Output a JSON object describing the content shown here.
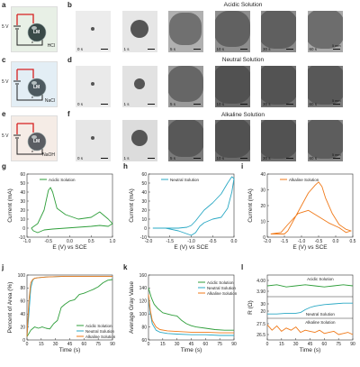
{
  "panels": {
    "a": "a",
    "b": "b",
    "c": "c",
    "d": "d",
    "e": "e",
    "f": "f",
    "g": "g",
    "h": "h",
    "i": "i",
    "j": "j",
    "k": "k",
    "l": "l"
  },
  "circuits": [
    {
      "voltage": "5 V",
      "drop": "LM",
      "solution": "HCl",
      "bg": "#e8f0e6",
      "drop_color": "#3a4a48",
      "electron": "e⁻"
    },
    {
      "voltage": "5 V",
      "drop": "LM",
      "solution": "NaCl",
      "bg": "#e3eef5",
      "drop_color": "#4d5a60",
      "electron": "e⁻"
    },
    {
      "voltage": "5 V",
      "drop": "LM",
      "solution": "NaOH",
      "bg": "#f5ece6",
      "drop_color": "#5a5d62",
      "electron": "e⁻"
    }
  ],
  "image_rows": [
    {
      "title": "Acidic Solution",
      "title_color": "#4a55a0",
      "times": [
        "0 s",
        "1 s",
        "5 s",
        "10 s",
        "30 s",
        "60 s"
      ],
      "scalebar": "5 mm"
    },
    {
      "title": "Neutral Solution",
      "title_color": "#4a55a0",
      "times": [
        "0 s",
        "1 s",
        "5 s",
        "10 s",
        "30 s",
        "60 s"
      ],
      "scalebar": "5 mm"
    },
    {
      "title": "Alkaline Solution",
      "title_color": "#4a55a0",
      "times": [
        "0 s",
        "1 s",
        "5 s",
        "10 s",
        "30 s",
        "60 s"
      ],
      "scalebar": "5 mm"
    }
  ],
  "colors": {
    "acidic": "#2e9e3a",
    "neutral": "#2aa8c4",
    "alkaline": "#f07a1a",
    "red_wire": "#d62020"
  },
  "chart_data": [
    {
      "id": "g",
      "type": "line",
      "xlabel": "E (V) vs SCE",
      "ylabel": "Current (mA)",
      "xlim": [
        -1.0,
        1.0
      ],
      "ylim": [
        -10,
        60
      ],
      "xticks": [
        "-1.0",
        "-0.5",
        "0.0",
        "0.5",
        "1.0"
      ],
      "yticks": [
        "-10",
        "0",
        "10",
        "20",
        "30",
        "40",
        "50",
        "60"
      ],
      "series": [
        {
          "name": "Acidic Solution",
          "color": "#2e9e3a",
          "x": [
            -0.9,
            -0.75,
            -0.6,
            -0.5,
            -0.45,
            -0.4,
            -0.3,
            -0.1,
            0.2,
            0.5,
            0.7,
            0.9,
            1.0,
            0.9,
            0.7,
            0.5,
            0.2,
            -0.1,
            -0.4,
            -0.6,
            -0.75,
            -0.85,
            -0.9
          ],
          "y": [
            0,
            5,
            20,
            42,
            45,
            40,
            22,
            15,
            10,
            12,
            18,
            10,
            5,
            2,
            3,
            2,
            1,
            0,
            -1,
            -2,
            -5,
            -3,
            0
          ]
        }
      ]
    },
    {
      "id": "h",
      "type": "line",
      "xlabel": "E (V) vs SCE",
      "ylabel": "Current (mA)",
      "xlim": [
        -2.0,
        0.0
      ],
      "ylim": [
        -10,
        60
      ],
      "xticks": [
        "-2.0",
        "-1.5",
        "-1.0",
        "-0.5",
        "0.0"
      ],
      "yticks": [
        "-10",
        "0",
        "10",
        "20",
        "30",
        "40",
        "50",
        "60"
      ],
      "series": [
        {
          "name": "Neutral Solution",
          "color": "#2aa8c4",
          "x": [
            -1.9,
            -1.6,
            -1.3,
            -1.1,
            -1.0,
            -0.9,
            -0.8,
            -0.7,
            -0.5,
            -0.3,
            -0.15,
            -0.05,
            0.0,
            -0.05,
            -0.15,
            -0.3,
            -0.5,
            -0.7,
            -0.8,
            -0.9,
            -1.0,
            -1.3,
            -1.6,
            -1.9
          ],
          "y": [
            0,
            0,
            0,
            1,
            3,
            8,
            14,
            20,
            28,
            38,
            50,
            57,
            55,
            40,
            22,
            12,
            10,
            6,
            2,
            -5,
            -8,
            -3,
            0,
            0
          ]
        }
      ]
    },
    {
      "id": "i",
      "type": "line",
      "xlabel": "E (V) vs SCE",
      "ylabel": "Current (mA)",
      "xlim": [
        -2.0,
        0.5
      ],
      "ylim": [
        0,
        40
      ],
      "xticks": [
        "-2.0",
        "-1.5",
        "-1.0",
        "-0.5",
        "0.0",
        "0.5"
      ],
      "yticks": [
        "0",
        "10",
        "20",
        "30",
        "40"
      ],
      "series": [
        {
          "name": "Alkaline Solution",
          "color": "#f07a1a",
          "x": [
            -1.9,
            -1.5,
            -1.4,
            -1.2,
            -1.0,
            -0.8,
            -0.6,
            -0.5,
            -0.4,
            -0.3,
            -0.1,
            0.1,
            0.3,
            0.45,
            0.3,
            0.1,
            -0.2,
            -0.5,
            -0.8,
            -1.1,
            -1.4,
            -1.6,
            -1.9
          ],
          "y": [
            2,
            2,
            4,
            12,
            20,
            28,
            33,
            35,
            32,
            25,
            15,
            8,
            5,
            4,
            3,
            6,
            9,
            13,
            17,
            15,
            8,
            3,
            2
          ]
        }
      ]
    },
    {
      "id": "j",
      "type": "line",
      "xlabel": "Time (s)",
      "ylabel": "Percent of Area (%)",
      "xlim": [
        0,
        90
      ],
      "ylim": [
        0,
        100
      ],
      "xticks": [
        "0",
        "15",
        "30",
        "45",
        "60",
        "75",
        "90"
      ],
      "yticks": [
        "0",
        "20",
        "40",
        "60",
        "80",
        "100"
      ],
      "series": [
        {
          "name": "Acidic Solution",
          "color": "#2e9e3a",
          "x": [
            0,
            2,
            4,
            8,
            12,
            16,
            20,
            24,
            28,
            32,
            36,
            40,
            45,
            50,
            55,
            60,
            65,
            70,
            75,
            80,
            85,
            90
          ],
          "y": [
            5,
            10,
            15,
            20,
            18,
            20,
            18,
            17,
            25,
            30,
            50,
            55,
            60,
            62,
            70,
            72,
            75,
            78,
            82,
            88,
            92,
            93
          ]
        },
        {
          "name": "Neutral Solution",
          "color": "#2aa8c4",
          "x": [
            0,
            2,
            4,
            6,
            8,
            12,
            20,
            40,
            60,
            90
          ],
          "y": [
            5,
            40,
            80,
            92,
            95,
            96,
            97,
            98,
            98,
            98
          ]
        },
        {
          "name": "Alkaline Solution",
          "color": "#f07a1a",
          "x": [
            0,
            2,
            4,
            6,
            8,
            12,
            20,
            40,
            60,
            90
          ],
          "y": [
            5,
            60,
            88,
            93,
            95,
            96,
            97,
            98,
            98,
            98
          ]
        }
      ]
    },
    {
      "id": "k",
      "type": "line",
      "xlabel": "Time (s)",
      "ylabel": "Average Gray Value",
      "xlim": [
        0,
        90
      ],
      "ylim": [
        60,
        160
      ],
      "xticks": [
        "0",
        "15",
        "30",
        "45",
        "60",
        "75",
        "90"
      ],
      "yticks": [
        "60",
        "80",
        "100",
        "120",
        "140",
        "160"
      ],
      "series": [
        {
          "name": "Acidic Solution",
          "color": "#2e9e3a",
          "x": [
            0,
            3,
            6,
            10,
            15,
            20,
            25,
            30,
            35,
            40,
            45,
            50,
            60,
            70,
            80,
            90
          ],
          "y": [
            140,
            125,
            115,
            108,
            102,
            100,
            98,
            97,
            90,
            85,
            82,
            80,
            78,
            76,
            75,
            75
          ]
        },
        {
          "name": "Neutral Solution",
          "color": "#2aa8c4",
          "x": [
            0,
            2,
            4,
            8,
            12,
            20,
            30,
            45,
            60,
            75,
            90
          ],
          "y": [
            125,
            100,
            85,
            75,
            72,
            70,
            69,
            68,
            68,
            67,
            67
          ]
        },
        {
          "name": "Alkaline Solution",
          "color": "#f07a1a",
          "x": [
            0,
            2,
            4,
            8,
            12,
            20,
            30,
            45,
            60,
            75,
            90
          ],
          "y": [
            130,
            105,
            90,
            80,
            76,
            74,
            73,
            72,
            72,
            71,
            71
          ]
        }
      ]
    },
    {
      "id": "l",
      "type": "line",
      "xlabel": "Time (s)",
      "ylabel": "R (Ω)",
      "xlim": [
        0,
        90
      ],
      "xticks": [
        "0",
        "15",
        "30",
        "45",
        "60",
        "75",
        "90"
      ],
      "subplots": [
        {
          "name": "Acidic Solution",
          "color": "#2e9e3a",
          "ylim": [
            3.85,
            4.05
          ],
          "yticks": [
            "4.00",
            "3.90"
          ],
          "x": [
            0,
            10,
            20,
            30,
            40,
            50,
            60,
            70,
            80,
            90
          ],
          "y": [
            3.95,
            3.96,
            3.94,
            3.95,
            3.96,
            3.95,
            3.94,
            3.95,
            3.96,
            3.95
          ]
        },
        {
          "name": "Neutral Solution",
          "color": "#2aa8c4",
          "ylim": [
            10,
            40
          ],
          "yticks": [
            "30",
            "20"
          ],
          "x": [
            0,
            10,
            20,
            30,
            35,
            40,
            45,
            50,
            60,
            70,
            80,
            90
          ],
          "y": [
            16,
            16,
            17,
            17,
            18,
            22,
            25,
            27,
            29,
            30,
            31,
            31
          ]
        },
        {
          "name": "Alkaline Solution",
          "color": "#f07a1a",
          "ylim": [
            26,
            28
          ],
          "yticks": [
            "27.5",
            "26.5"
          ],
          "x": [
            0,
            5,
            10,
            15,
            20,
            25,
            30,
            35,
            40,
            45,
            50,
            55,
            60,
            65,
            70,
            75,
            80,
            85,
            90
          ],
          "y": [
            27.4,
            26.9,
            27.3,
            26.8,
            27.1,
            26.9,
            27.2,
            26.7,
            26.9,
            26.8,
            26.7,
            26.9,
            26.6,
            26.7,
            26.8,
            26.5,
            26.6,
            26.7,
            26.5
          ]
        }
      ]
    }
  ]
}
